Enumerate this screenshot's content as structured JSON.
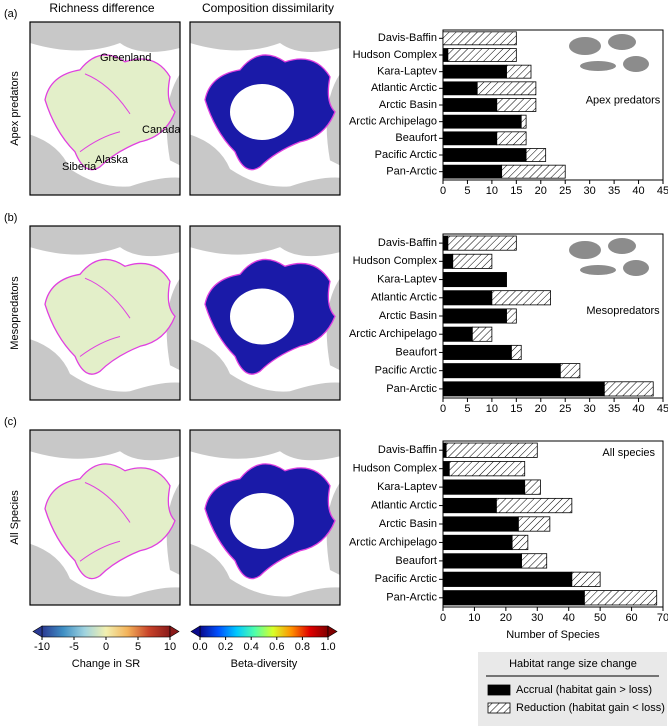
{
  "figure": {
    "column_titles": [
      "Richness difference",
      "Composition dissimilarity"
    ],
    "panels": [
      {
        "label": "(a)",
        "row_label": "Apex predators"
      },
      {
        "label": "(b)",
        "row_label": "Mesopredators"
      },
      {
        "label": "(c)",
        "row_label": "All Species"
      }
    ],
    "map_labels": [
      "Greenland",
      "Canada",
      "Alaska",
      "Siberia"
    ]
  },
  "colorbars": [
    {
      "label": "Change in SR",
      "lim": [
        -10,
        10
      ],
      "ticks": [
        -10,
        -5,
        0,
        5,
        10
      ],
      "colors": [
        "#2b3a93",
        "#3f8fc4",
        "#9fd3df",
        "#f2f0b0",
        "#f3b35a",
        "#c9442a",
        "#8a1a1a"
      ]
    },
    {
      "label": "Beta-diversity",
      "lim": [
        0,
        1
      ],
      "ticks": [
        {
          "value": 0,
          "label": "0.0"
        },
        0.2,
        0.4,
        0.6,
        0.8,
        {
          "value": 1,
          "label": "1.0"
        }
      ],
      "colors": [
        "#0a0a8c",
        "#0050ff",
        "#00c8ff",
        "#50ffaa",
        "#d8ff28",
        "#ff9000",
        "#e00000",
        "#800000"
      ]
    }
  ],
  "chart_data": [
    {
      "type": "bar",
      "orientation": "horizontal",
      "stacked": true,
      "annotation": "Apex predators",
      "categories": [
        "Davis-Baffin",
        "Hudson Complex",
        "Kara-Laptev",
        "Atlantic Arctic",
        "Arctic Basin",
        "Arctic Archipelago",
        "Beaufort",
        "Pacific Arctic",
        "Pan-Arctic"
      ],
      "series": [
        {
          "color": "#000000",
          "values": [
            0,
            1,
            13,
            7,
            11,
            16,
            11,
            17,
            12
          ]
        },
        {
          "color": "#ffffff",
          "hatch": true,
          "values": [
            15,
            14,
            5,
            12,
            8,
            1,
            6,
            4,
            13
          ]
        }
      ],
      "xlim": [
        0,
        45
      ],
      "xticks": [
        0,
        5,
        10,
        15,
        20,
        25,
        30,
        35,
        40,
        45
      ]
    },
    {
      "type": "bar",
      "orientation": "horizontal",
      "stacked": true,
      "annotation": "Mesopredators",
      "categories": [
        "Davis-Baffin",
        "Hudson Complex",
        "Kara-Laptev",
        "Atlantic Arctic",
        "Arctic Basin",
        "Arctic Archipelago",
        "Beaufort",
        "Pacific Arctic",
        "Pan-Arctic"
      ],
      "series": [
        {
          "color": "#000000",
          "values": [
            1,
            2,
            13,
            10,
            13,
            6,
            14,
            24,
            33
          ]
        },
        {
          "color": "#ffffff",
          "hatch": true,
          "values": [
            14,
            8,
            0,
            12,
            2,
            4,
            2,
            4,
            10
          ]
        }
      ],
      "xlim": [
        0,
        45
      ],
      "xticks": [
        0,
        5,
        10,
        15,
        20,
        25,
        30,
        35,
        40,
        45
      ]
    },
    {
      "type": "bar",
      "orientation": "horizontal",
      "stacked": true,
      "annotation": "All species",
      "categories": [
        "Davis-Baffin",
        "Hudson Complex",
        "Kara-Laptev",
        "Atlantic Arctic",
        "Arctic Basin",
        "Arctic Archipelago",
        "Beaufort",
        "Pacific Arctic",
        "Pan-Arctic"
      ],
      "series": [
        {
          "name": "Accrual (habitat gain > loss)",
          "color": "#000000",
          "values": [
            1,
            2,
            26,
            17,
            24,
            22,
            25,
            41,
            45
          ]
        },
        {
          "name": "Reduction (habitat gain < loss)",
          "color": "#ffffff",
          "hatch": true,
          "values": [
            29,
            24,
            5,
            24,
            10,
            5,
            8,
            9,
            23
          ]
        }
      ],
      "xlim": [
        0,
        70
      ],
      "xticks": [
        0,
        10,
        20,
        30,
        40,
        50,
        60,
        70
      ],
      "xlabel": "Number of Species",
      "legend_title": "Habitat range size change"
    }
  ]
}
